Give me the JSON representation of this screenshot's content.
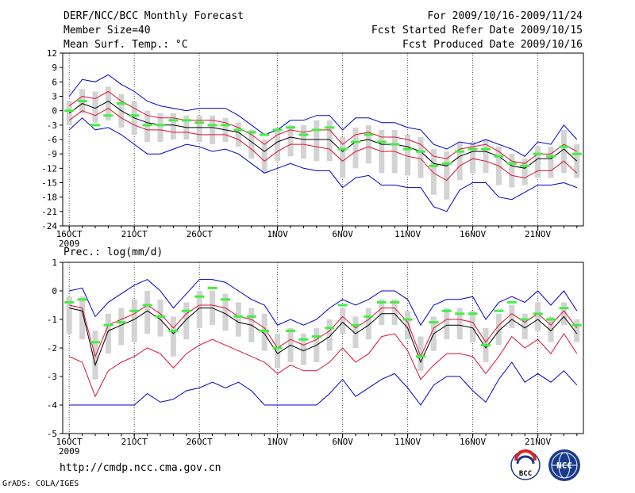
{
  "header": {
    "left": [
      "DERF/NCC/BCC Monthly Forecast",
      "Member Size=40",
      "Mean Surf. Temp.: °C"
    ],
    "right": [
      "For 2009/10/16-2009/11/24",
      "Fcst Started Refer Date 2009/10/15",
      "Fcst Produced Date 2009/10/16"
    ]
  },
  "footer": {
    "url": "http://cmdp.ncc.cma.gov.cn",
    "credit": "GrADS: COLA/IGES",
    "logo_left_text": "BCC",
    "logo_right_text": "NCC"
  },
  "colors": {
    "median": "#000000",
    "spread": "#dd1133",
    "extreme": "#0000cc",
    "box": "#d3d3d3",
    "observed": "#44ee44",
    "grid": "#000000"
  },
  "chart_data": [
    {
      "type": "line",
      "title": "Mean Surf. Temp.: °C",
      "x_start_day": 16,
      "x_ticks": [
        "16OCT",
        "21OCT",
        "26OCT",
        "1NOV",
        "6NOV",
        "11NOV",
        "16NOV",
        "21NOV"
      ],
      "x_tick_days": [
        16,
        21,
        26,
        32,
        37,
        42,
        47,
        52
      ],
      "x_year_label": "2009",
      "x_range": [
        15.5,
        55.5
      ],
      "ylim": [
        -24,
        12
      ],
      "yticks": [
        12,
        9,
        6,
        3,
        0,
        -3,
        -6,
        -9,
        -12,
        -15,
        -18,
        -21,
        -24
      ],
      "days": [
        16,
        17,
        18,
        19,
        20,
        21,
        22,
        23,
        24,
        25,
        26,
        27,
        28,
        29,
        30,
        31,
        32,
        33,
        34,
        35,
        36,
        37,
        38,
        39,
        40,
        41,
        42,
        43,
        44,
        45,
        46,
        47,
        48,
        49,
        50,
        51,
        52,
        53,
        54,
        55
      ],
      "series": [
        {
          "name": "max",
          "values": [
            3,
            6.5,
            6,
            7.5,
            5.5,
            4,
            2,
            1,
            0.5,
            0,
            0.5,
            0.5,
            0.5,
            -1,
            -3,
            -5,
            -4,
            -2,
            -2,
            -1,
            -1,
            -4,
            -1.5,
            -1.5,
            -2.5,
            -2.5,
            -3.5,
            -4,
            -7,
            -8,
            -6.5,
            -7,
            -6,
            -7,
            -8,
            -9.5,
            -6.5,
            -7,
            -3,
            -6
          ]
        },
        {
          "name": "upper",
          "values": [
            1,
            3,
            2.5,
            4,
            2,
            0.5,
            -1,
            -1.5,
            -1.5,
            -2,
            -2,
            -2,
            -2.5,
            -3.5,
            -5,
            -7,
            -5,
            -4,
            -4.5,
            -4,
            -4,
            -7,
            -5,
            -4.5,
            -5.5,
            -5.5,
            -6,
            -7,
            -9.5,
            -10,
            -8,
            -7.5,
            -7,
            -8.5,
            -10.5,
            -11,
            -9,
            -9,
            -7,
            -8.5
          ]
        },
        {
          "name": "median",
          "values": [
            -0.5,
            1.5,
            0.5,
            2,
            0,
            -1.5,
            -2.5,
            -3,
            -3,
            -3.5,
            -3.5,
            -3.5,
            -4,
            -4.5,
            -6.5,
            -8.5,
            -6.5,
            -5.5,
            -6,
            -6,
            -6,
            -8.5,
            -6.5,
            -6,
            -7,
            -7,
            -7.5,
            -8.5,
            -11,
            -11.5,
            -9.5,
            -8.5,
            -8.5,
            -9.5,
            -11.5,
            -12,
            -10,
            -10,
            -8,
            -10.5
          ]
        },
        {
          "name": "lower",
          "values": [
            -2,
            0,
            -1,
            0.5,
            -1.5,
            -3,
            -4,
            -4,
            -4.5,
            -4.5,
            -5,
            -5,
            -5,
            -6,
            -8,
            -10.5,
            -8.5,
            -7,
            -7,
            -7.5,
            -8,
            -10.5,
            -8.5,
            -7.5,
            -8.5,
            -8.5,
            -9.5,
            -10,
            -13,
            -14.5,
            -11.5,
            -10,
            -10.5,
            -11.5,
            -13.5,
            -14,
            -12.5,
            -12.5,
            -10.5,
            -13
          ]
        },
        {
          "name": "min",
          "values": [
            -4,
            -1.5,
            -4,
            -3.5,
            -5,
            -7,
            -9,
            -9,
            -8,
            -7,
            -7.5,
            -8.5,
            -8,
            -9,
            -11,
            -13,
            -12,
            -11,
            -12,
            -12.5,
            -12.5,
            -16,
            -14,
            -13.5,
            -15.5,
            -15.5,
            -16,
            -16,
            -20,
            -21,
            -16.5,
            -15,
            -15,
            -18,
            -18.5,
            -17,
            -15.5,
            -15.5,
            -15,
            -16
          ]
        },
        {
          "name": "box_top",
          "values": [
            2,
            4.5,
            4,
            5,
            3.5,
            2,
            0,
            -0.5,
            -0.5,
            -1,
            -1,
            -1,
            -1.5,
            -2.5,
            -4,
            -6,
            -3.5,
            -3,
            -3,
            -2,
            -2,
            -5.5,
            -3.5,
            -3,
            -4,
            -4,
            -5,
            -5.5,
            -8,
            -8.5,
            -6.5,
            -6.5,
            -6,
            -7.5,
            -9,
            -10,
            -7.5,
            -7.5,
            -4,
            -7
          ]
        },
        {
          "name": "box_bottom",
          "values": [
            -3,
            -0.5,
            -2.5,
            -2,
            -3.5,
            -5,
            -6.5,
            -6.5,
            -6,
            -6,
            -6.5,
            -7,
            -6.5,
            -7.5,
            -10,
            -13,
            -10.5,
            -9.5,
            -10,
            -10.5,
            -10.5,
            -14,
            -12,
            -11,
            -13,
            -13,
            -13.5,
            -14,
            -17.5,
            -18.5,
            -14.5,
            -13,
            -13,
            -15.5,
            -16,
            -15.5,
            -14,
            -14,
            -13,
            -14
          ]
        },
        {
          "name": "observed",
          "values": [
            0,
            2,
            -3,
            -1,
            1.5,
            -1,
            -3,
            -3,
            -2,
            -2,
            -2.5,
            -3,
            -3,
            -4,
            -4.5,
            -5,
            -4,
            -3.5,
            -5,
            -4,
            -3.5,
            -8,
            -6.5,
            -5,
            -6.5,
            -7,
            -8,
            -8.5,
            -11.5,
            -11,
            -8.5,
            -8,
            -8,
            -9.5,
            -11,
            -11.5,
            -9,
            -9.5,
            -7.5,
            -9
          ]
        }
      ]
    },
    {
      "type": "line",
      "title": "Prec.: log(mm/d)",
      "x_start_day": 16,
      "x_ticks": [
        "16OCT",
        "21OCT",
        "26OCT",
        "1NOV",
        "6NOV",
        "11NOV",
        "16NOV",
        "21NOV"
      ],
      "x_tick_days": [
        16,
        21,
        26,
        32,
        37,
        42,
        47,
        52
      ],
      "x_year_label": "2009",
      "x_range": [
        15.5,
        55.5
      ],
      "ylim": [
        -5,
        1
      ],
      "yticks": [
        1,
        0,
        -1,
        -2,
        -3,
        -4,
        -5
      ],
      "days": [
        16,
        17,
        18,
        19,
        20,
        21,
        22,
        23,
        24,
        25,
        26,
        27,
        28,
        29,
        30,
        31,
        32,
        33,
        34,
        35,
        36,
        37,
        38,
        39,
        40,
        41,
        42,
        43,
        44,
        45,
        46,
        47,
        48,
        49,
        50,
        51,
        52,
        53,
        54,
        55
      ],
      "series": [
        {
          "name": "max",
          "values": [
            0,
            0.1,
            -0.9,
            -0.4,
            -0.1,
            0.2,
            0.4,
            0,
            -0.6,
            -0.1,
            0.4,
            0.4,
            0.3,
            0,
            -0.3,
            -0.5,
            -1.2,
            -1,
            -1.2,
            -1,
            -0.6,
            -0.3,
            -0.5,
            -0.3,
            0,
            0,
            -0.3,
            -1.2,
            -0.5,
            -0.3,
            -0.3,
            -0.2,
            -1,
            -0.4,
            -0.2,
            -0.4,
            0,
            -0.5,
            0,
            -0.7
          ]
        },
        {
          "name": "upper",
          "values": [
            -0.5,
            -0.6,
            -2.3,
            -1.2,
            -1,
            -0.8,
            -0.5,
            -0.8,
            -1.3,
            -0.8,
            -0.5,
            -0.5,
            -0.6,
            -0.9,
            -1,
            -1.3,
            -2,
            -1.7,
            -1.9,
            -1.7,
            -1.4,
            -0.9,
            -1.3,
            -1,
            -0.6,
            -0.6,
            -1.1,
            -2.3,
            -1.3,
            -1,
            -1,
            -1.1,
            -1.8,
            -1.2,
            -0.8,
            -1.1,
            -0.8,
            -1.2,
            -0.7,
            -1.3
          ]
        },
        {
          "name": "median",
          "values": [
            -0.6,
            -0.7,
            -2.6,
            -1.4,
            -1.2,
            -1,
            -0.7,
            -1,
            -1.5,
            -1,
            -0.6,
            -0.6,
            -0.8,
            -1.1,
            -1.2,
            -1.5,
            -2.2,
            -1.9,
            -2.1,
            -1.9,
            -1.6,
            -1.1,
            -1.5,
            -1.2,
            -0.8,
            -0.8,
            -1.3,
            -2.5,
            -1.5,
            -1.2,
            -1.2,
            -1.3,
            -2,
            -1.4,
            -1,
            -1.3,
            -1,
            -1.4,
            -0.9,
            -1.5
          ]
        },
        {
          "name": "lower",
          "values": [
            -2.3,
            -2.5,
            -3.7,
            -2.8,
            -2.5,
            -2.3,
            -2,
            -2.2,
            -2.7,
            -2.2,
            -1.9,
            -1.7,
            -1.9,
            -2.1,
            -2.3,
            -2.5,
            -2.9,
            -2.6,
            -2.8,
            -2.8,
            -2.5,
            -2,
            -2.5,
            -2.2,
            -1.6,
            -1.5,
            -2.1,
            -3.1,
            -2.6,
            -2.2,
            -2.2,
            -2.3,
            -2.9,
            -2.3,
            -1.6,
            -2,
            -1.7,
            -2.2,
            -1.5,
            -2.2
          ]
        },
        {
          "name": "min",
          "values": [
            -4,
            -4,
            -4,
            -4,
            -4,
            -4,
            -3.6,
            -3.9,
            -3.8,
            -3.5,
            -3.4,
            -3.2,
            -3.4,
            -3.2,
            -3.5,
            -4,
            -4,
            -4,
            -4,
            -4,
            -3.6,
            -3.1,
            -3.7,
            -3.4,
            -3.1,
            -2.9,
            -3.4,
            -4,
            -3.3,
            -3,
            -3,
            -3.5,
            -3.9,
            -3.1,
            -2.5,
            -3.2,
            -2.9,
            -3.2,
            -2.8,
            -3.3
          ]
        },
        {
          "name": "box_top",
          "values": [
            -0.2,
            -0.2,
            -1.4,
            -0.8,
            -0.6,
            -0.3,
            0,
            -0.3,
            -0.9,
            -0.4,
            0,
            0,
            -0.1,
            -0.4,
            -0.6,
            -0.8,
            -1.5,
            -1.3,
            -1.5,
            -1.3,
            -1,
            -0.6,
            -0.9,
            -0.6,
            -0.3,
            -0.3,
            -0.7,
            -1.6,
            -0.9,
            -0.6,
            -0.6,
            -0.7,
            -1.3,
            -0.8,
            -0.5,
            -0.8,
            -0.4,
            -0.9,
            -0.4,
            -1
          ]
        },
        {
          "name": "box_bottom",
          "values": [
            -1.5,
            -1.7,
            -3.1,
            -2.2,
            -1.9,
            -1.8,
            -1.5,
            -1.6,
            -2.3,
            -1.7,
            -1.3,
            -1.2,
            -1.4,
            -1.6,
            -1.8,
            -2.1,
            -2.7,
            -2.5,
            -2.6,
            -2.5,
            -2.1,
            -1.5,
            -2,
            -1.7,
            -1.2,
            -1.2,
            -1.7,
            -2.8,
            -2.1,
            -1.7,
            -1.7,
            -1.8,
            -2.5,
            -1.9,
            -1.3,
            -1.7,
            -1.4,
            -1.8,
            -1.2,
            -1.8
          ]
        },
        {
          "name": "observed",
          "values": [
            -0.4,
            -0.3,
            -1.8,
            -1.2,
            -1.1,
            -0.7,
            -0.5,
            -0.9,
            -1.4,
            -0.7,
            -0.2,
            0.1,
            -0.3,
            -0.9,
            -0.9,
            -1.4,
            -2,
            -1.4,
            -1.7,
            -1.6,
            -1.3,
            -0.5,
            -1.2,
            -0.9,
            -0.4,
            -0.4,
            -1,
            -2.3,
            -1.1,
            -0.7,
            -0.8,
            -0.8,
            -1.9,
            -0.7,
            -0.4,
            -1,
            -0.8,
            -1,
            -0.6,
            -1.2
          ]
        }
      ]
    }
  ]
}
